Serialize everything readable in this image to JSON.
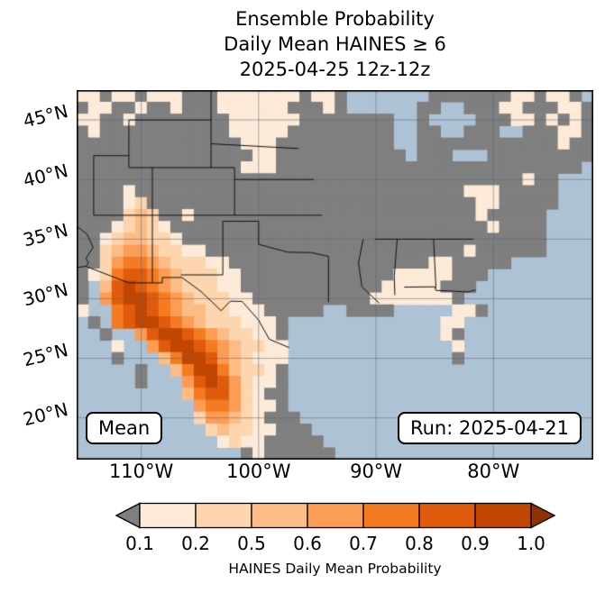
{
  "title": {
    "line1": "Ensemble Probability",
    "line2": "Daily Mean HAINES ≥ 6",
    "line3": "2025-04-25 12z-12z"
  },
  "map": {
    "mean_label": "Mean",
    "run_label": "Run: 2025-04-21",
    "ocean_color": "#aec2d5",
    "land_nodata_color": "#7f7f7f",
    "lat_ticks": [
      {
        "label": "45°N",
        "value": 45
      },
      {
        "label": "40°N",
        "value": 40
      },
      {
        "label": "35°N",
        "value": 35
      },
      {
        "label": "30°N",
        "value": 30
      },
      {
        "label": "25°N",
        "value": 25
      },
      {
        "label": "20°N",
        "value": 20
      }
    ],
    "lon_ticks": [
      {
        "label": "110°W",
        "value": -110
      },
      {
        "label": "100°W",
        "value": -100
      },
      {
        "label": "90°W",
        "value": -90
      },
      {
        "label": "80°W",
        "value": -80
      }
    ]
  },
  "colorbar": {
    "label": "HAINES Daily Mean Probability",
    "ticks": [
      "0.1",
      "0.2",
      "0.5",
      "0.6",
      "0.7",
      "0.8",
      "0.9",
      "1.0"
    ],
    "segment_colors": [
      "#fdead8",
      "#fdd5ae",
      "#fdbc85",
      "#fd9c54",
      "#f47b22",
      "#e05b0c",
      "#c04602"
    ],
    "under_color": "#7f7f7f",
    "over_color": "#8f3103"
  },
  "chart_data": {
    "type": "heatmap",
    "title": "Ensemble Probability Daily Mean HAINES ≥ 6 2025-04-25 12z-12z",
    "legend_label": "HAINES Daily Mean Probability",
    "levels": [
      0.1,
      0.2,
      0.5,
      0.6,
      0.7,
      0.8,
      0.9,
      1.0
    ],
    "lon_range": [
      -115.5,
      -71.5
    ],
    "lat_range": [
      16.5,
      47.5
    ],
    "cell_deg": 1,
    "grid_encoding": {
      ".": "water",
      "0": "land < 0.1 (gray)",
      "1": "0.1–0.2",
      "2": "0.2–0.5",
      "3": "0.5–0.6",
      "4": "0.6–0.7",
      "5": "0.7–0.8",
      "6": "0.8–0.9",
      "7": "0.9–1.0"
    },
    "grid_rows_north_to_south": [
      "11011011100011111110110.......0000000110110.",
      "01100100100011111100010......00..00011000110",
      "11001000000001111110 0000000..0....0001101010",
      "01000000000001111100 0000000..00..000..000110",
      "00000000000000111000 0000000..000000000000100",
      "0000000000000001100000000000.000...000000000",
      "0000000000000011100000000000000000000000000.",
      "00000000000000000000000000000000000000100...",
      "00001000000000000000000000000000011100000...",
      "00001200000000000000000000000000001100000...",
      "0000232001000000000000000000000000100000....",
      "0001232100000000000000000000000000010000....",
      "0012332210000000000000000000000000000000....",
      "0023443221100000000000000000000001000000....",
      "00245543222110000000000000000011 00000......",
      "012566543222110000000000000111110 00........",
      "0.367654322211000000000000111110 00.........",
      "0.4677654322211000000000011111110...........",
      "1..56765433221110000 0..0000.....110.........",
      ".0.567765432221110.............11...........",
      "..0..4677654322110.............10...........",
      "...1..467765432211..............1...........",
      "...0...35776432111..............0...........",
      ".....0..3577532210..........................",
      ".....0...467642110..........................",
      ".........356642100..........................",
      "..........45542110..........................",
      "..........244321000.........................",
      "...........232211000........................",
      "............12110000 0.......................",
      "..............01000000......................"
    ]
  }
}
